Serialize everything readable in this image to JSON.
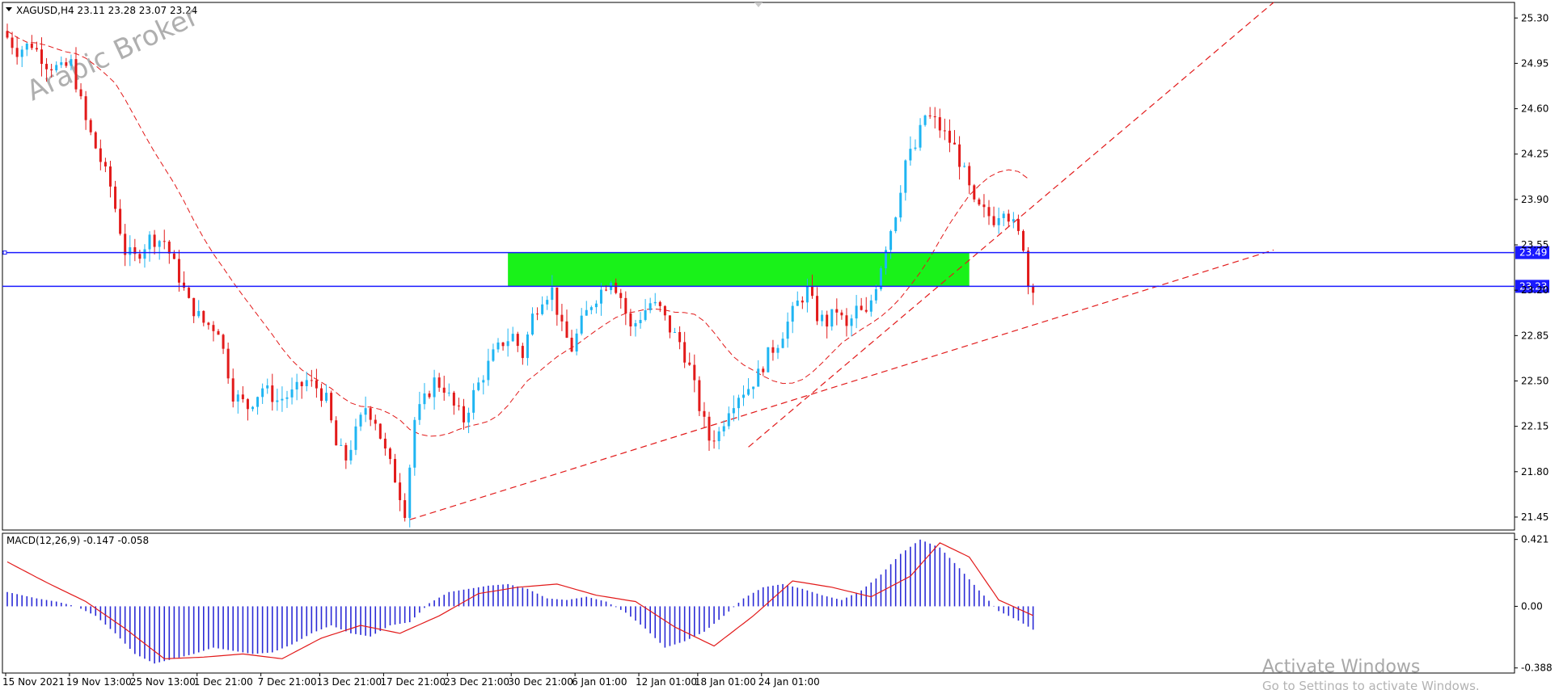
{
  "window": {
    "symbol_header": "XAGUSD,H4  23.11 23.28 23.07 23.24",
    "macd_header": "MACD(12,26,9) -0.147 -0.058"
  },
  "watermark": "Arabic Broker",
  "activation": {
    "title": "Activate Windows",
    "subtitle": "Go to Settings to activate Windows."
  },
  "colors": {
    "bull": "#1fb5f2",
    "bear": "#e21a1a",
    "hline": "#1a1aff",
    "zone": "#19f219",
    "dashed": "#e21a1a",
    "macd_hist": "#2a2ad6",
    "macd_signal": "#e21a1a"
  },
  "chart_data": [
    {
      "type": "candlestick",
      "symbol": "XAGUSD",
      "timeframe": "H4",
      "ylim": [
        21.35,
        25.42
      ],
      "y_ticks": [
        "25.30",
        "24.95",
        "24.60",
        "24.25",
        "23.90",
        "23.55",
        "23.20",
        "22.85",
        "22.50",
        "22.15",
        "21.80",
        "21.45"
      ],
      "x_ticks": [
        "15 Nov 2021",
        "19 Nov 13:00",
        "25 Nov 13:00",
        "1 Dec 21:00",
        "7 Dec 21:00",
        "13 Dec 21:00",
        "17 Dec 21:00",
        "23 Dec 21:00",
        "30 Dec 21:00",
        "6 Jan 01:00",
        "12 Jan 01:00",
        "18 Jan 01:00",
        "24 Jan 01:00"
      ],
      "price_path": [
        [
          0,
          25.2
        ],
        [
          3,
          25.05
        ],
        [
          6,
          25.1
        ],
        [
          9,
          24.95
        ],
        [
          12,
          24.9
        ],
        [
          14,
          24.95
        ],
        [
          17,
          24.5
        ],
        [
          19,
          24.3
        ],
        [
          22,
          24.0
        ],
        [
          25,
          23.5
        ],
        [
          27,
          23.45
        ],
        [
          30,
          23.6
        ],
        [
          33,
          23.58
        ],
        [
          36,
          23.3
        ],
        [
          38,
          23.1
        ],
        [
          41,
          22.95
        ],
        [
          44,
          22.9
        ],
        [
          47,
          22.4
        ],
        [
          50,
          22.3
        ],
        [
          53,
          22.45
        ],
        [
          56,
          22.35
        ],
        [
          59,
          22.4
        ],
        [
          62,
          22.5
        ],
        [
          64,
          22.45
        ],
        [
          66,
          22.35
        ],
        [
          68,
          22.0
        ],
        [
          70,
          21.9
        ],
        [
          72,
          22.1
        ],
        [
          74,
          22.3
        ],
        [
          76,
          22.2
        ],
        [
          78,
          21.95
        ],
        [
          80,
          21.75
        ],
        [
          82,
          21.5
        ],
        [
          84,
          22.2
        ],
        [
          86,
          22.35
        ],
        [
          88,
          22.5
        ],
        [
          90,
          22.45
        ],
        [
          92,
          22.3
        ],
        [
          94,
          22.2
        ],
        [
          96,
          22.4
        ],
        [
          98,
          22.55
        ],
        [
          100,
          22.7
        ],
        [
          102,
          22.8
        ],
        [
          104,
          22.85
        ],
        [
          106,
          22.7
        ],
        [
          108,
          23.0
        ],
        [
          110,
          23.15
        ],
        [
          112,
          23.2
        ],
        [
          114,
          22.9
        ],
        [
          116,
          22.75
        ],
        [
          118,
          22.95
        ],
        [
          120,
          23.1
        ],
        [
          122,
          23.2
        ],
        [
          124,
          23.3
        ],
        [
          126,
          23.15
        ],
        [
          128,
          22.9
        ],
        [
          130,
          23.0
        ],
        [
          132,
          23.1
        ],
        [
          134,
          23.05
        ],
        [
          136,
          22.9
        ],
        [
          138,
          22.8
        ],
        [
          140,
          22.6
        ],
        [
          142,
          22.3
        ],
        [
          144,
          22.05
        ],
        [
          146,
          22.1
        ],
        [
          148,
          22.3
        ],
        [
          150,
          22.4
        ],
        [
          152,
          22.45
        ],
        [
          154,
          22.55
        ],
        [
          156,
          22.7
        ],
        [
          158,
          22.8
        ],
        [
          160,
          22.95
        ],
        [
          162,
          23.1
        ],
        [
          164,
          23.2
        ],
        [
          166,
          23.0
        ],
        [
          168,
          22.95
        ],
        [
          170,
          23.05
        ],
        [
          172,
          22.9
        ],
        [
          174,
          23.05
        ],
        [
          176,
          23.0
        ],
        [
          178,
          23.25
        ],
        [
          180,
          23.55
        ],
        [
          182,
          23.8
        ],
        [
          184,
          24.2
        ],
        [
          186,
          24.3
        ],
        [
          188,
          24.55
        ],
        [
          190,
          24.5
        ],
        [
          192,
          24.4
        ],
        [
          194,
          24.3
        ],
        [
          196,
          24.1
        ],
        [
          198,
          23.85
        ],
        [
          200,
          23.8
        ],
        [
          202,
          23.75
        ],
        [
          204,
          23.85
        ],
        [
          206,
          23.7
        ],
        [
          208,
          23.55
        ],
        [
          209,
          23.24
        ]
      ],
      "horizontal_levels": [
        23.49,
        23.23
      ],
      "zone": {
        "from_bar": 102,
        "to_bar": 196,
        "low": 23.23,
        "high": 23.49
      },
      "trendlines": [
        {
          "from": [
            82,
            21.43
          ],
          "to": [
            258,
            23.51
          ]
        },
        {
          "from": [
            151,
            21.99
          ],
          "to": [
            258,
            25.42
          ]
        }
      ]
    },
    {
      "type": "macd",
      "params": "12,26,9",
      "value": -0.147,
      "signal": -0.058,
      "ylim": [
        -0.42,
        0.46
      ],
      "y_ticks": [
        "0.421",
        "0.00",
        "-0.388"
      ],
      "histogram_path": [
        [
          0,
          0.09
        ],
        [
          6,
          0.05
        ],
        [
          10,
          0.03
        ],
        [
          14,
          0.0
        ],
        [
          18,
          -0.06
        ],
        [
          22,
          -0.17
        ],
        [
          26,
          -0.3
        ],
        [
          30,
          -0.36
        ],
        [
          34,
          -0.33
        ],
        [
          38,
          -0.3
        ],
        [
          42,
          -0.26
        ],
        [
          46,
          -0.28
        ],
        [
          50,
          -0.3
        ],
        [
          54,
          -0.29
        ],
        [
          58,
          -0.24
        ],
        [
          62,
          -0.17
        ],
        [
          66,
          -0.12
        ],
        [
          70,
          -0.17
        ],
        [
          74,
          -0.19
        ],
        [
          78,
          -0.12
        ],
        [
          82,
          -0.1
        ],
        [
          86,
          0.02
        ],
        [
          90,
          0.09
        ],
        [
          94,
          0.11
        ],
        [
          98,
          0.13
        ],
        [
          102,
          0.14
        ],
        [
          106,
          0.11
        ],
        [
          110,
          0.05
        ],
        [
          114,
          0.04
        ],
        [
          118,
          0.06
        ],
        [
          122,
          0.03
        ],
        [
          126,
          -0.04
        ],
        [
          130,
          -0.14
        ],
        [
          134,
          -0.26
        ],
        [
          138,
          -0.22
        ],
        [
          142,
          -0.16
        ],
        [
          146,
          -0.06
        ],
        [
          150,
          0.05
        ],
        [
          154,
          0.12
        ],
        [
          158,
          0.14
        ],
        [
          162,
          0.11
        ],
        [
          166,
          0.07
        ],
        [
          170,
          0.04
        ],
        [
          174,
          0.1
        ],
        [
          178,
          0.2
        ],
        [
          182,
          0.33
        ],
        [
          186,
          0.42
        ],
        [
          190,
          0.37
        ],
        [
          194,
          0.24
        ],
        [
          198,
          0.1
        ],
        [
          202,
          -0.03
        ],
        [
          206,
          -0.09
        ],
        [
          209,
          -0.147
        ]
      ],
      "signal_path": [
        [
          0,
          0.28
        ],
        [
          8,
          0.15
        ],
        [
          16,
          0.03
        ],
        [
          24,
          -0.14
        ],
        [
          32,
          -0.33
        ],
        [
          40,
          -0.32
        ],
        [
          48,
          -0.3
        ],
        [
          56,
          -0.33
        ],
        [
          64,
          -0.2
        ],
        [
          72,
          -0.12
        ],
        [
          80,
          -0.17
        ],
        [
          88,
          -0.06
        ],
        [
          96,
          0.08
        ],
        [
          104,
          0.12
        ],
        [
          112,
          0.14
        ],
        [
          120,
          0.07
        ],
        [
          128,
          0.03
        ],
        [
          136,
          -0.13
        ],
        [
          144,
          -0.25
        ],
        [
          152,
          -0.06
        ],
        [
          160,
          0.16
        ],
        [
          168,
          0.12
        ],
        [
          176,
          0.06
        ],
        [
          184,
          0.19
        ],
        [
          190,
          0.4
        ],
        [
          196,
          0.31
        ],
        [
          202,
          0.04
        ],
        [
          209,
          -0.058
        ]
      ]
    }
  ]
}
